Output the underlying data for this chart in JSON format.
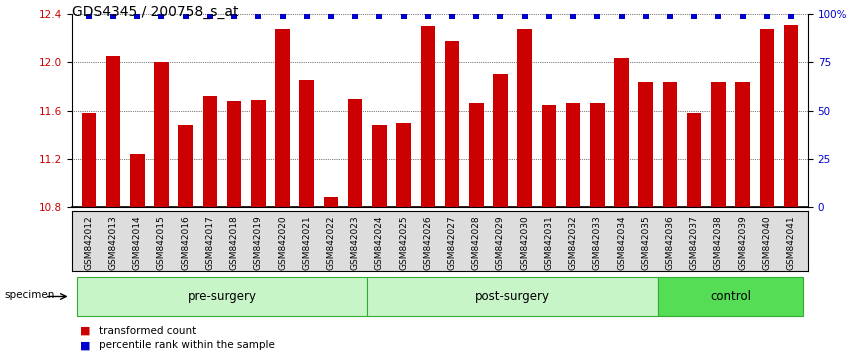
{
  "title": "GDS4345 / 200758_s_at",
  "categories": [
    "GSM842012",
    "GSM842013",
    "GSM842014",
    "GSM842015",
    "GSM842016",
    "GSM842017",
    "GSM842018",
    "GSM842019",
    "GSM842020",
    "GSM842021",
    "GSM842022",
    "GSM842023",
    "GSM842024",
    "GSM842025",
    "GSM842026",
    "GSM842027",
    "GSM842028",
    "GSM842029",
    "GSM842030",
    "GSM842031",
    "GSM842032",
    "GSM842033",
    "GSM842034",
    "GSM842035",
    "GSM842036",
    "GSM842037",
    "GSM842038",
    "GSM842039",
    "GSM842040",
    "GSM842041"
  ],
  "bar_values": [
    11.58,
    12.05,
    11.24,
    12.0,
    11.48,
    11.72,
    11.68,
    11.69,
    12.28,
    11.85,
    10.88,
    11.7,
    11.48,
    11.5,
    12.3,
    12.18,
    11.66,
    11.9,
    12.28,
    11.65,
    11.66,
    11.66,
    12.04,
    11.84,
    11.84,
    11.58,
    11.84,
    11.84,
    12.28,
    12.31
  ],
  "percentile_values": [
    99,
    99,
    99,
    99,
    99,
    99,
    99,
    99,
    99,
    99,
    99,
    99,
    99,
    99,
    99,
    99,
    99,
    99,
    99,
    99,
    99,
    99,
    99,
    99,
    99,
    99,
    99,
    99,
    99,
    99
  ],
  "groups": [
    {
      "label": "pre-surgery",
      "start": 0,
      "end": 12
    },
    {
      "label": "post-surgery",
      "start": 12,
      "end": 24
    },
    {
      "label": "control",
      "start": 24,
      "end": 30
    }
  ],
  "group_colors": [
    "#c8f5c8",
    "#c8f5c8",
    "#55dd55"
  ],
  "group_edge_color": "#33aa33",
  "ylim_left": [
    10.8,
    12.4
  ],
  "ylim_right": [
    0,
    100
  ],
  "yticks_left": [
    10.8,
    11.2,
    11.6,
    12.0,
    12.4
  ],
  "yticks_right": [
    0,
    25,
    50,
    75,
    100
  ],
  "ytick_labels_right": [
    "0",
    "25",
    "50",
    "75",
    "100%"
  ],
  "bar_color": "#CC0000",
  "percentile_color": "#0000CC",
  "bar_width": 0.6,
  "background_color": "#ffffff",
  "plot_bg_color": "#ffffff",
  "xticklabel_bg": "#dddddd",
  "legend_items": [
    {
      "label": "transformed count",
      "color": "#CC0000"
    },
    {
      "label": "percentile rank within the sample",
      "color": "#0000CC"
    }
  ],
  "specimen_label": "specimen",
  "title_fontsize": 10,
  "tick_fontsize": 6.5,
  "group_label_fontsize": 8.5,
  "legend_fontsize": 7.5
}
